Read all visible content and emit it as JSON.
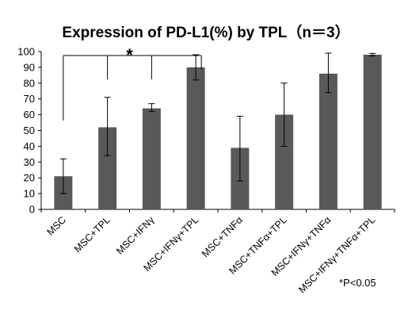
{
  "chart_data": {
    "type": "bar",
    "title": "Expression of PD-L1(%) by TPL（n＝3）",
    "xlabel": "",
    "ylabel": "",
    "categories": [
      "MSC",
      "MSC+TPL",
      "MSC+IFNγ",
      "MSC+IFNγ+TPL",
      "MSC+TNFα",
      "MSC+TNFα+TPL",
      "MSC+IFNγ+TNFα",
      "MSC+IFNγ+TNFα+TPL"
    ],
    "values": [
      21,
      52,
      64,
      90,
      39,
      60,
      86,
      98
    ],
    "error_upper": [
      32,
      71,
      67,
      98,
      59,
      80,
      99,
      98.8
    ],
    "error_lower": [
      10,
      34,
      62,
      82,
      18,
      40,
      74,
      97.2
    ],
    "ylim": [
      0,
      100
    ],
    "yticks": [
      0,
      10,
      20,
      30,
      40,
      50,
      60,
      70,
      80,
      90,
      100
    ],
    "bar_color": "#595959",
    "grid": false,
    "legend": "none",
    "significance": {
      "marker": "*",
      "note": "*P<0.05",
      "reference_index": 0,
      "compared_indices": [
        1,
        2,
        3
      ]
    }
  }
}
